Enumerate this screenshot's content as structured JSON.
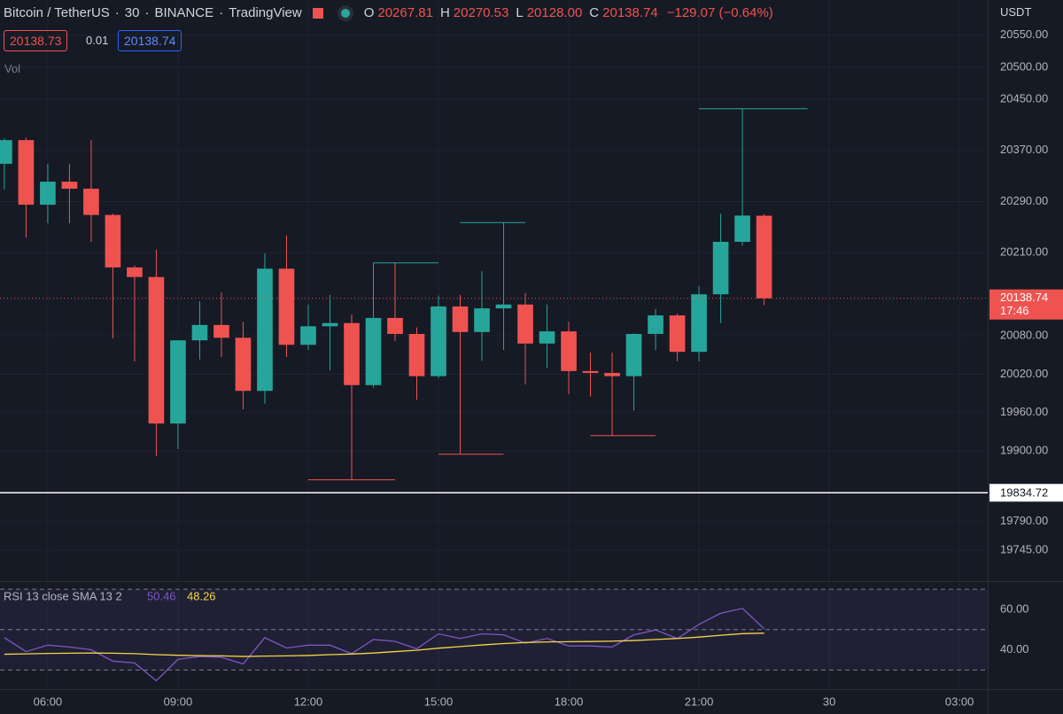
{
  "header": {
    "symbol": "Bitcoin / TetherUS",
    "interval": "30",
    "exchange": "BINANCE",
    "source": "TradingView",
    "ohlc": [
      {
        "key": "O",
        "value": "20267.81"
      },
      {
        "key": "H",
        "value": "20270.53"
      },
      {
        "key": "L",
        "value": "20128.00"
      },
      {
        "key": "C",
        "value": "20138.74"
      }
    ],
    "change": "−129.07 (−0.64%)"
  },
  "quote": {
    "bid": "20138.73",
    "spread": "0.01",
    "ask": "20138.74"
  },
  "volume_label": "Vol",
  "currency": "USDT",
  "chart_data": [
    {
      "type": "candlestick",
      "up_color": "#26a69a",
      "down_color": "#ef5350",
      "x": [
        5,
        5.5,
        6,
        6.5,
        7,
        7.5,
        8,
        8.5,
        9,
        9.5,
        10,
        10.5,
        11,
        11.5,
        12,
        12.5,
        13,
        13.5,
        14,
        14.5,
        15,
        15.5,
        16,
        16.5,
        17,
        17.5,
        18,
        18.5,
        19,
        19.5,
        20,
        20.5,
        21,
        21.5,
        22,
        22.5
      ],
      "open": [
        20349,
        20386,
        20285,
        20321,
        20310,
        20269,
        20187,
        20172,
        19943,
        20073,
        20097,
        20077,
        19994,
        20185,
        20066,
        20095,
        20100,
        20003,
        20108,
        20083,
        20017,
        20126,
        20086,
        20123,
        20129,
        20068,
        20087,
        20025,
        20022,
        20017,
        20083,
        20112,
        20055,
        20145,
        20227,
        20267.81
      ],
      "high": [
        20389,
        20390,
        20349,
        20349,
        20386,
        20271,
        20190,
        20215,
        20073,
        20134,
        20148,
        20102,
        20209,
        20237,
        20129,
        20144,
        20113,
        20194,
        20194,
        20093,
        20143,
        20144,
        20181,
        20257,
        20147,
        20129,
        20102,
        20054,
        20054,
        20084,
        20122,
        20115,
        20158,
        20271,
        20435,
        20270.53
      ],
      "low": [
        20309,
        20234,
        20256,
        20256,
        20227,
        20076,
        20040,
        19892,
        19903,
        20043,
        20047,
        19965,
        19974,
        20047,
        20058,
        20026,
        19855,
        19999,
        20072,
        19980,
        20014,
        19895,
        20041,
        20058,
        20004,
        20030,
        19989,
        19985,
        19924,
        19963,
        20058,
        20040,
        20040,
        20100,
        20221,
        20128
      ],
      "close": [
        20386,
        20285,
        20321,
        20310,
        20269,
        20187,
        20172,
        19943,
        20073,
        20097,
        20077,
        19994,
        20185,
        20066,
        20095,
        20100,
        20003,
        20108,
        20083,
        20017,
        20126,
        20086,
        20123,
        20129,
        20068,
        20087,
        20025,
        20022,
        20017,
        20083,
        20112,
        20055,
        20145,
        20227,
        20268,
        20138.74
      ],
      "xlim": [
        4.9,
        27.65
      ],
      "xticks": [
        {
          "value": 6,
          "label": "06:00"
        },
        {
          "value": 9,
          "label": "09:00"
        },
        {
          "value": 12,
          "label": "12:00"
        },
        {
          "value": 15,
          "label": "15:00"
        },
        {
          "value": 18,
          "label": "18:00"
        },
        {
          "value": 21,
          "label": "21:00"
        },
        {
          "value": 24,
          "label": "30"
        },
        {
          "value": 27,
          "label": "03:00"
        }
      ],
      "ylim": [
        19698,
        20605
      ],
      "yticks": [
        {
          "value": 20550,
          "label": "20550.00"
        },
        {
          "value": 20500,
          "label": "20500.00"
        },
        {
          "value": 20450,
          "label": "20450.00"
        },
        {
          "value": 20370,
          "label": "20370.00"
        },
        {
          "value": 20290,
          "label": "20290.00"
        },
        {
          "value": 20210,
          "label": "20210.00"
        },
        {
          "value": 20080,
          "label": "20080.00"
        },
        {
          "value": 20020,
          "label": "20020.00"
        },
        {
          "value": 19960,
          "label": "19960.00"
        },
        {
          "value": 19900,
          "label": "19900.00"
        },
        {
          "value": 19790,
          "label": "19790.00"
        },
        {
          "value": 19745,
          "label": "19745.00"
        }
      ],
      "countdown": "17:46",
      "level": 19834.72,
      "grid": true
    },
    {
      "type": "line",
      "title": "RSI 13 close SMA 13 2",
      "x": [
        5,
        5.5,
        6,
        6.5,
        7,
        7.5,
        8,
        8.5,
        9,
        9.5,
        10,
        10.5,
        11,
        11.5,
        12,
        12.5,
        13,
        13.5,
        14,
        14.5,
        15,
        15.5,
        16,
        16.5,
        17,
        17.5,
        18,
        18.5,
        19,
        19.5,
        20,
        20.5,
        21,
        21.5,
        22,
        22.5
      ],
      "series": [
        {
          "color": "#7e57c2",
          "values": [
            46.0,
            39.1,
            42.3,
            41.4,
            40.0,
            34.4,
            33.5,
            24.7,
            35.3,
            36.7,
            36.3,
            33.0,
            46.0,
            40.9,
            42.3,
            42.3,
            38.1,
            45.1,
            44.2,
            40.5,
            47.9,
            45.6,
            47.9,
            47.4,
            43.3,
            45.6,
            41.9,
            41.9,
            41.4,
            47.4,
            49.8,
            45.6,
            52.6,
            58.1,
            60.5,
            50.46
          ]
        },
        {
          "color": "#f5d547",
          "values": [
            37.8,
            38.0,
            38.2,
            38.3,
            38.4,
            38.3,
            38.1,
            37.6,
            37.3,
            37.1,
            37.0,
            36.7,
            36.9,
            37.0,
            37.2,
            37.6,
            37.9,
            38.4,
            39.1,
            39.8,
            40.8,
            41.6,
            42.4,
            43.1,
            43.6,
            43.9,
            44.0,
            44.1,
            44.3,
            44.6,
            45.1,
            45.6,
            46.3,
            47.2,
            48.0,
            48.26
          ]
        }
      ],
      "ylim": [
        20.5,
        74
      ],
      "yticks": [
        {
          "value": 60,
          "label": "60.00"
        },
        {
          "value": 40,
          "label": "40.00"
        }
      ],
      "hlines": [
        70,
        50,
        30
      ]
    }
  ]
}
